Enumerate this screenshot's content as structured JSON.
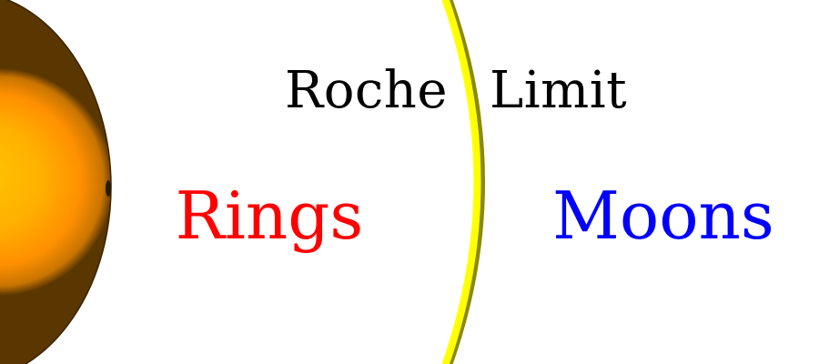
{
  "labels": {
    "roche_word1": "Roche",
    "roche_word2": "Limit",
    "rings": "Rings",
    "moons": "Moons"
  },
  "colors": {
    "planet_light": "#ffc400",
    "planet_mid": "#ff9f00",
    "planet_dark": "#a06000",
    "planet_edge": "#3a2400",
    "roche_line": "#ffff00",
    "roche_line_shadow": "#8a8a00",
    "roche_text": "#000000",
    "rings_text": "#ff0000",
    "moons_text": "#0000ff",
    "background": "#ffffff"
  }
}
